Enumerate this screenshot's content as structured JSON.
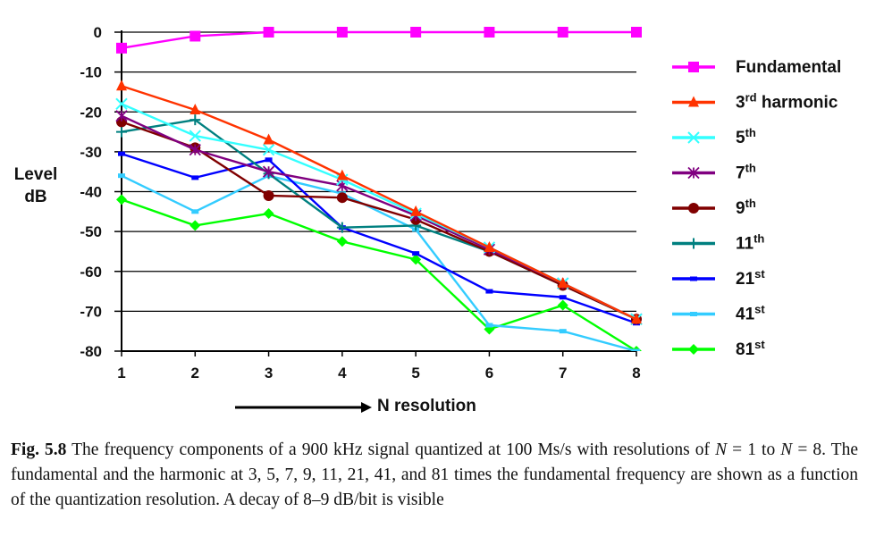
{
  "chart_data": {
    "type": "line",
    "ylabel": [
      "Level",
      "dB"
    ],
    "xlabel": "N resolution",
    "ylim": [
      -80,
      0
    ],
    "yticks": [
      0,
      -10,
      -20,
      -30,
      -40,
      -50,
      -60,
      -70,
      -80
    ],
    "x": [
      1,
      2,
      3,
      4,
      5,
      6,
      7,
      8
    ],
    "grid": "horizontal",
    "legend_position": "right",
    "series": [
      {
        "name": "Fundamental",
        "sup": "",
        "color": "#ff00ff",
        "marker": "square",
        "values": [
          -4,
          -1,
          0,
          0,
          0,
          0,
          0,
          0
        ]
      },
      {
        "name": "3",
        "sup": "rd harmonic",
        "color": "#ff3300",
        "marker": "triangle",
        "values": [
          -13.5,
          -19.5,
          -27,
          -36,
          -45,
          -54,
          -63,
          -72
        ]
      },
      {
        "name": "5",
        "sup": "th",
        "color": "#33ffff",
        "marker": "x",
        "values": [
          -18,
          -26,
          -29.5,
          -37,
          -45.5,
          -54,
          -63,
          -72
        ]
      },
      {
        "name": "7",
        "sup": "th",
        "color": "#800080",
        "marker": "asterisk",
        "values": [
          -21,
          -29.5,
          -35,
          -38.5,
          -46,
          -54.5,
          -63,
          -72
        ]
      },
      {
        "name": "9",
        "sup": "th",
        "color": "#800000",
        "marker": "circle",
        "values": [
          -22.5,
          -29,
          -41,
          -41.5,
          -47,
          -55,
          -63.5,
          -72
        ]
      },
      {
        "name": "11",
        "sup": "th",
        "color": "#008080",
        "marker": "plus",
        "values": [
          -25,
          -22,
          -35.5,
          -49,
          -48.5,
          -55,
          -63.5,
          -72
        ]
      },
      {
        "name": "21",
        "sup": "st",
        "color": "#0000ff",
        "marker": "dash",
        "values": [
          -30.5,
          -36.5,
          -32,
          -49,
          -55.5,
          -65,
          -66.5,
          -73
        ]
      },
      {
        "name": "41",
        "sup": "st",
        "color": "#33ccff",
        "marker": "dash",
        "values": [
          -36,
          -45,
          -36,
          -40.5,
          -49.5,
          -73.5,
          -75,
          -80
        ]
      },
      {
        "name": "81",
        "sup": "st",
        "color": "#00ff00",
        "marker": "diamond",
        "values": [
          -42,
          -48.5,
          -45.5,
          -52.5,
          -57,
          -74.5,
          -68.5,
          -80
        ]
      }
    ],
    "axis_arrow_label": "N resolution"
  },
  "caption": {
    "fig_label": "Fig. 5.8",
    "text_1": "  The frequency components of a 900 kHz signal quantized at 100 Ms/s with resolutions of ",
    "n1": "N",
    "text_2": " = 1 to ",
    "n2": "N",
    "text_3": " = 8. The fundamental and the harmonic at 3, 5, 7, 9, 11, 21, 41, and 81 times the fundamental frequency are shown as a function of the quantization resolution. A decay of 8–9 dB/bit is visible"
  }
}
